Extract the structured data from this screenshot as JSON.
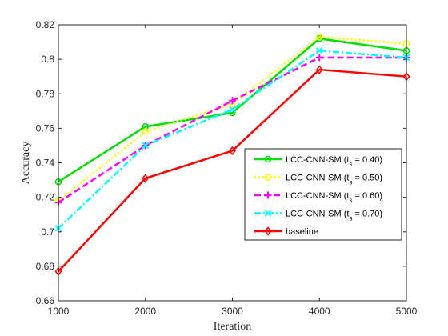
{
  "chart_data": {
    "type": "line",
    "xlabel": "Iteration",
    "ylabel": "Accuracy",
    "x": [
      1000,
      2000,
      3000,
      4000,
      5000
    ],
    "xlim": [
      1000,
      5000
    ],
    "ylim": [
      0.66,
      0.82
    ],
    "xticks": [
      "1000",
      "2000",
      "3000",
      "4000",
      "5000"
    ],
    "yticks": [
      "0.66",
      "0.68",
      "0.7",
      "0.72",
      "0.74",
      "0.76",
      "0.78",
      "0.8",
      "0.82"
    ],
    "grid": false,
    "legend_position": "lower-right",
    "series": [
      {
        "name": "LCC-CNN-SM (t",
        "sub": "s",
        "suffix": " = 0.40)",
        "values": [
          0.729,
          0.761,
          0.769,
          0.812,
          0.805
        ],
        "color": "#00dd00",
        "dash": "solid",
        "marker": "circle"
      },
      {
        "name": "LCC-CNN-SM (t",
        "sub": "s",
        "suffix": " = 0.50)",
        "values": [
          0.718,
          0.758,
          0.774,
          0.813,
          0.809
        ],
        "color": "#ffff00",
        "dash": "dotted",
        "marker": "circle"
      },
      {
        "name": "LCC-CNN-SM (t",
        "sub": "s",
        "suffix": " = 0.60)",
        "values": [
          0.717,
          0.75,
          0.776,
          0.801,
          0.801
        ],
        "color": "#ff00ff",
        "dash": "dashed",
        "marker": "plus"
      },
      {
        "name": "LCC-CNN-SM (t",
        "sub": "s",
        "suffix": " = 0.70)",
        "values": [
          0.702,
          0.75,
          0.771,
          0.805,
          0.801
        ],
        "color": "#00ffff",
        "dash": "dashdot",
        "marker": "x"
      },
      {
        "name": "baseline",
        "sub": "",
        "suffix": "",
        "values": [
          0.677,
          0.731,
          0.747,
          0.794,
          0.79
        ],
        "color": "#ff0000",
        "dash": "solid",
        "marker": "diamond"
      }
    ]
  }
}
